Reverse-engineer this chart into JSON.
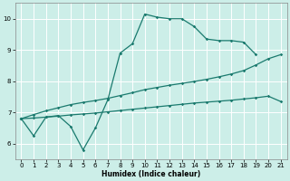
{
  "background_color": "#cceee8",
  "grid_color": "#ffffff",
  "line_color": "#1a7a6e",
  "xlabel": "Humidex (Indice chaleur)",
  "xlim": [
    -0.5,
    21.5
  ],
  "ylim": [
    5.5,
    10.5
  ],
  "xticks": [
    0,
    1,
    2,
    3,
    4,
    5,
    6,
    7,
    8,
    9,
    10,
    11,
    12,
    13,
    14,
    15,
    16,
    17,
    18,
    19,
    20,
    21
  ],
  "yticks": [
    6,
    7,
    8,
    9,
    10
  ],
  "line1_x": [
    0,
    1,
    2,
    3,
    4,
    5,
    6,
    7,
    8,
    9,
    10,
    11,
    12,
    13,
    14,
    15,
    16,
    17,
    18,
    19
  ],
  "line1_y": [
    6.8,
    6.25,
    6.85,
    6.9,
    6.55,
    5.8,
    6.5,
    7.4,
    8.9,
    9.2,
    10.15,
    10.05,
    10.0,
    10.0,
    9.75,
    9.35,
    9.3,
    9.3,
    9.25,
    8.85
  ],
  "line2_x": [
    0,
    1,
    2,
    3,
    4,
    5,
    6,
    7,
    8,
    9,
    10,
    11,
    12,
    13,
    14,
    15,
    16,
    17,
    18,
    19,
    20,
    21
  ],
  "line2_y": [
    6.8,
    6.93,
    7.05,
    7.15,
    7.25,
    7.32,
    7.38,
    7.45,
    7.54,
    7.63,
    7.73,
    7.8,
    7.87,
    7.93,
    7.99,
    8.06,
    8.14,
    8.23,
    8.34,
    8.52,
    8.72,
    8.85
  ],
  "line3_x": [
    0,
    1,
    2,
    3,
    4,
    5,
    6,
    7,
    8,
    9,
    10,
    11,
    12,
    13,
    14,
    15,
    16,
    17,
    18,
    19,
    20,
    21
  ],
  "line3_y": [
    6.8,
    6.82,
    6.85,
    6.88,
    6.92,
    6.95,
    6.98,
    7.02,
    7.06,
    7.1,
    7.14,
    7.18,
    7.22,
    7.26,
    7.3,
    7.33,
    7.36,
    7.39,
    7.43,
    7.47,
    7.52,
    7.35
  ]
}
